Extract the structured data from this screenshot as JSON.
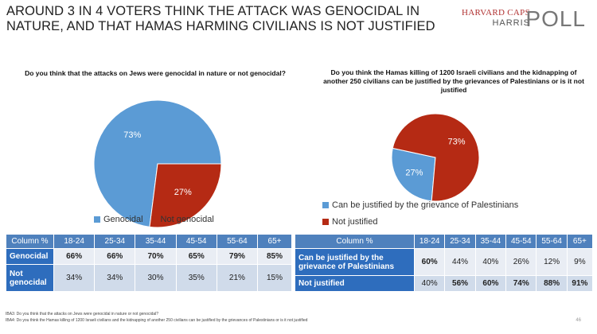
{
  "title": "AROUND 3 IN 4 VOTERS THINK THE ATTACK WAS GENOCIDAL IN NATURE, AND THAT HAMAS HARMING CIVILIANS IS NOT JUSTIFIED",
  "logo": {
    "line1": "HARVARD CAPS",
    "line2": "HARRIS",
    "line3": "POLL"
  },
  "colors": {
    "blue": "#5b9bd5",
    "red": "#b52a14",
    "header_blue": "#4f81bd",
    "row_blue": "#2e6dbd"
  },
  "chart_data": [
    {
      "type": "pie",
      "title": "Do you think that the attacks on Jews were genocidal in nature or not genocidal?",
      "labels": [
        "Genocidal",
        "Not genocidal"
      ],
      "values": [
        73,
        27
      ],
      "data_labels": [
        "73%",
        "27%"
      ],
      "colors": [
        "#5b9bd5",
        "#b52a14"
      ],
      "legend": "bottom"
    },
    {
      "type": "pie",
      "title": "Do you think the Hamas killing of 1200 Israeli civilians and the kidnapping of another 250 civilians can be justified by the grievances of Palestinians or is it not justified",
      "labels": [
        "Can be justified by the grievance of Palestinians",
        "Not justified"
      ],
      "values": [
        27,
        73
      ],
      "data_labels": [
        "27%",
        "73%"
      ],
      "colors": [
        "#5b9bd5",
        "#b52a14"
      ],
      "legend": "bottom"
    },
    {
      "type": "table",
      "columns": [
        "Column %",
        "18-24",
        "25-34",
        "35-44",
        "45-54",
        "55-64",
        "65+"
      ],
      "rows": [
        {
          "label": "Genocidal",
          "values": [
            "66%",
            "66%",
            "70%",
            "65%",
            "79%",
            "85%"
          ]
        },
        {
          "label": "Not genocidal",
          "values": [
            "34%",
            "34%",
            "30%",
            "35%",
            "21%",
            "15%"
          ]
        }
      ]
    },
    {
      "type": "table",
      "columns": [
        "Column %",
        "18-24",
        "25-34",
        "35-44",
        "45-54",
        "55-64",
        "65+"
      ],
      "rows": [
        {
          "label": "Can be justified by the grievance of Palestinians",
          "values": [
            "60%",
            "44%",
            "40%",
            "26%",
            "12%",
            "9%"
          ]
        },
        {
          "label": "Not justified",
          "values": [
            "40%",
            "56%",
            "60%",
            "74%",
            "88%",
            "91%"
          ]
        }
      ]
    }
  ],
  "footnotes": [
    "IBA3: Do you think that the attacks on Jews were genocidal in nature or not genocidal?",
    "IBA4: Do you think the Hamas killing of 1200 Israeli civilians and the kidnapping of another 250 civilians can be justified by the grievances of Palestinians or is it not justified"
  ],
  "page_number": "46"
}
